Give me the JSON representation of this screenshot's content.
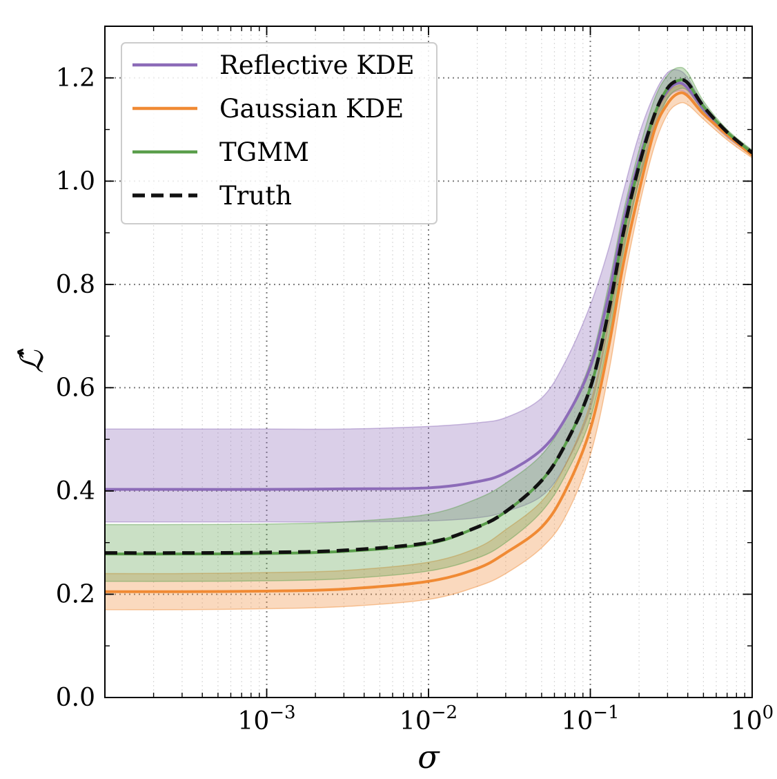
{
  "chart_data": {
    "type": "line",
    "xlabel": "σ",
    "ylabel": "ℒ̂",
    "xscale": "log",
    "xlim": [
      0.0001,
      1
    ],
    "ylim": [
      0,
      1.3
    ],
    "grid": "on",
    "legend_position": "top-left",
    "x_ticks": [
      {
        "value": 0.001,
        "base": "10",
        "exp": "−3"
      },
      {
        "value": 0.01,
        "base": "10",
        "exp": "−2"
      },
      {
        "value": 0.1,
        "base": "10",
        "exp": "−1"
      },
      {
        "value": 1,
        "base": "10",
        "exp": "0"
      }
    ],
    "y_ticks": [
      "0.0",
      "0.2",
      "0.4",
      "0.6",
      "0.8",
      "1.0",
      "1.2"
    ],
    "x": [
      0.0001,
      0.0003,
      0.001,
      0.003,
      0.01,
      0.02,
      0.03,
      0.05,
      0.07,
      0.1,
      0.13,
      0.16,
      0.2,
      0.25,
      0.3,
      0.35,
      0.4,
      0.5,
      0.7,
      1.0
    ],
    "series": [
      {
        "name": "Reflective KDE",
        "color": "#8c6bb8",
        "style": "solid",
        "values": [
          0.403,
          0.403,
          0.403,
          0.404,
          0.406,
          0.418,
          0.435,
          0.48,
          0.54,
          0.64,
          0.78,
          0.92,
          1.04,
          1.13,
          1.175,
          1.19,
          1.18,
          1.14,
          1.09,
          1.055
        ],
        "band_low": [
          0.34,
          0.34,
          0.34,
          0.34,
          0.342,
          0.348,
          0.36,
          0.39,
          0.45,
          0.56,
          0.72,
          0.87,
          1.0,
          1.11,
          1.16,
          1.175,
          1.168,
          1.13,
          1.085,
          1.05
        ],
        "band_high": [
          0.52,
          0.52,
          0.52,
          0.52,
          0.525,
          0.532,
          0.542,
          0.58,
          0.65,
          0.76,
          0.87,
          0.98,
          1.09,
          1.17,
          1.21,
          1.215,
          1.2,
          1.15,
          1.095,
          1.06
        ]
      },
      {
        "name": "Gaussian KDE",
        "color": "#f08a34",
        "style": "solid",
        "values": [
          0.205,
          0.205,
          0.206,
          0.21,
          0.225,
          0.25,
          0.28,
          0.33,
          0.4,
          0.52,
          0.68,
          0.84,
          0.98,
          1.1,
          1.15,
          1.17,
          1.165,
          1.13,
          1.09,
          1.05
        ],
        "band_low": [
          0.17,
          0.17,
          0.172,
          0.176,
          0.19,
          0.215,
          0.24,
          0.29,
          0.35,
          0.47,
          0.63,
          0.8,
          0.95,
          1.07,
          1.13,
          1.15,
          1.148,
          1.12,
          1.08,
          1.045
        ],
        "band_high": [
          0.24,
          0.24,
          0.242,
          0.246,
          0.262,
          0.29,
          0.325,
          0.38,
          0.45,
          0.57,
          0.73,
          0.88,
          1.01,
          1.12,
          1.17,
          1.185,
          1.18,
          1.145,
          1.095,
          1.055
        ]
      },
      {
        "name": "TGMM",
        "color": "#5a9e4b",
        "style": "solid",
        "values": [
          0.278,
          0.278,
          0.279,
          0.283,
          0.298,
          0.33,
          0.36,
          0.42,
          0.49,
          0.6,
          0.75,
          0.9,
          1.03,
          1.13,
          1.18,
          1.195,
          1.19,
          1.145,
          1.095,
          1.055
        ],
        "band_low": [
          0.225,
          0.225,
          0.226,
          0.23,
          0.245,
          0.27,
          0.3,
          0.36,
          0.43,
          0.54,
          0.7,
          0.86,
          1.0,
          1.1,
          1.16,
          1.178,
          1.175,
          1.135,
          1.088,
          1.05
        ],
        "band_high": [
          0.335,
          0.335,
          0.336,
          0.34,
          0.355,
          0.385,
          0.415,
          0.47,
          0.54,
          0.65,
          0.8,
          0.94,
          1.06,
          1.16,
          1.205,
          1.22,
          1.21,
          1.155,
          1.1,
          1.06
        ]
      },
      {
        "name": "Truth",
        "color": "#111111",
        "style": "dashed",
        "values": [
          0.28,
          0.28,
          0.281,
          0.285,
          0.3,
          0.33,
          0.36,
          0.42,
          0.49,
          0.6,
          0.75,
          0.9,
          1.03,
          1.13,
          1.18,
          1.195,
          1.19,
          1.145,
          1.095,
          1.055
        ]
      }
    ]
  }
}
